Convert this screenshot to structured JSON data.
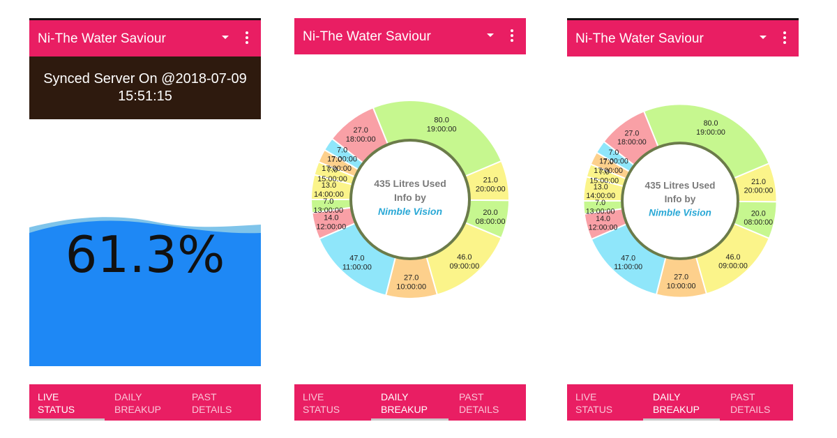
{
  "app": {
    "title": "Ni-The Water Saviour"
  },
  "live_status": {
    "synced_line1": "Synced Server On @2018-07-09",
    "synced_line2": "15:51:15",
    "level_percent_text": "61.3%",
    "level_fraction": 0.613,
    "water_color": "#1e88f5",
    "wave_color": "#7fc4ea"
  },
  "tabs": [
    {
      "line1": "LIVE",
      "line2": "STATUS"
    },
    {
      "line1": "DAILY",
      "line2": "BREAKUP"
    },
    {
      "line1": "PAST",
      "line2": "DETAILS"
    }
  ],
  "colors": {
    "accent": "#e91e63",
    "synced_bg": "#2e1a0e",
    "ring_inner": "#6b7b4a",
    "brand_text": "#29a8d6"
  },
  "chart_center": {
    "line1": "435  Litres Used",
    "line2": "Info by",
    "line3": "Nimble Vision"
  },
  "chart_data": {
    "type": "pie",
    "total_text": "435",
    "slices": [
      {
        "value": 80.0,
        "label": "80.0",
        "time": "19:00:00",
        "color": "#c6f78f"
      },
      {
        "value": 21.0,
        "label": "21.0",
        "time": "20:00:00",
        "color": "#fbf48a"
      },
      {
        "value": 20.0,
        "label": "20.0",
        "time": "08:00:00",
        "color": "#c6f78f"
      },
      {
        "value": 46.0,
        "label": "46.0",
        "time": "09:00:00",
        "color": "#fbf48a"
      },
      {
        "value": 27.0,
        "label": "27.0",
        "time": "10:00:00",
        "color": "#fdd08c"
      },
      {
        "value": 47.0,
        "label": "47.0",
        "time": "11:00:00",
        "color": "#8fe6fa"
      },
      {
        "value": 14.0,
        "label": "14.0",
        "time": "12:00:00",
        "color": "#f9a0a6"
      },
      {
        "value": 7.0,
        "label": "7.0",
        "time": "13:00:00",
        "color": "#c6f78f"
      },
      {
        "value": 13.0,
        "label": "13.0",
        "time": "14:00:00",
        "color": "#fbf48a"
      },
      {
        "value": 7.0,
        "label": "7.0",
        "time": "15:00:00",
        "color": "#fbf48a"
      },
      {
        "value": 7.0,
        "label": "7.0",
        "time": "17:00:00",
        "color": "#fdd08c"
      },
      {
        "value": 7.0,
        "label": "7.0",
        "time": "17:00:00",
        "color": "#8fe6fa"
      },
      {
        "value": 27.0,
        "label": "27.0",
        "time": "18:00:00",
        "color": "#f9a0a6"
      }
    ]
  }
}
